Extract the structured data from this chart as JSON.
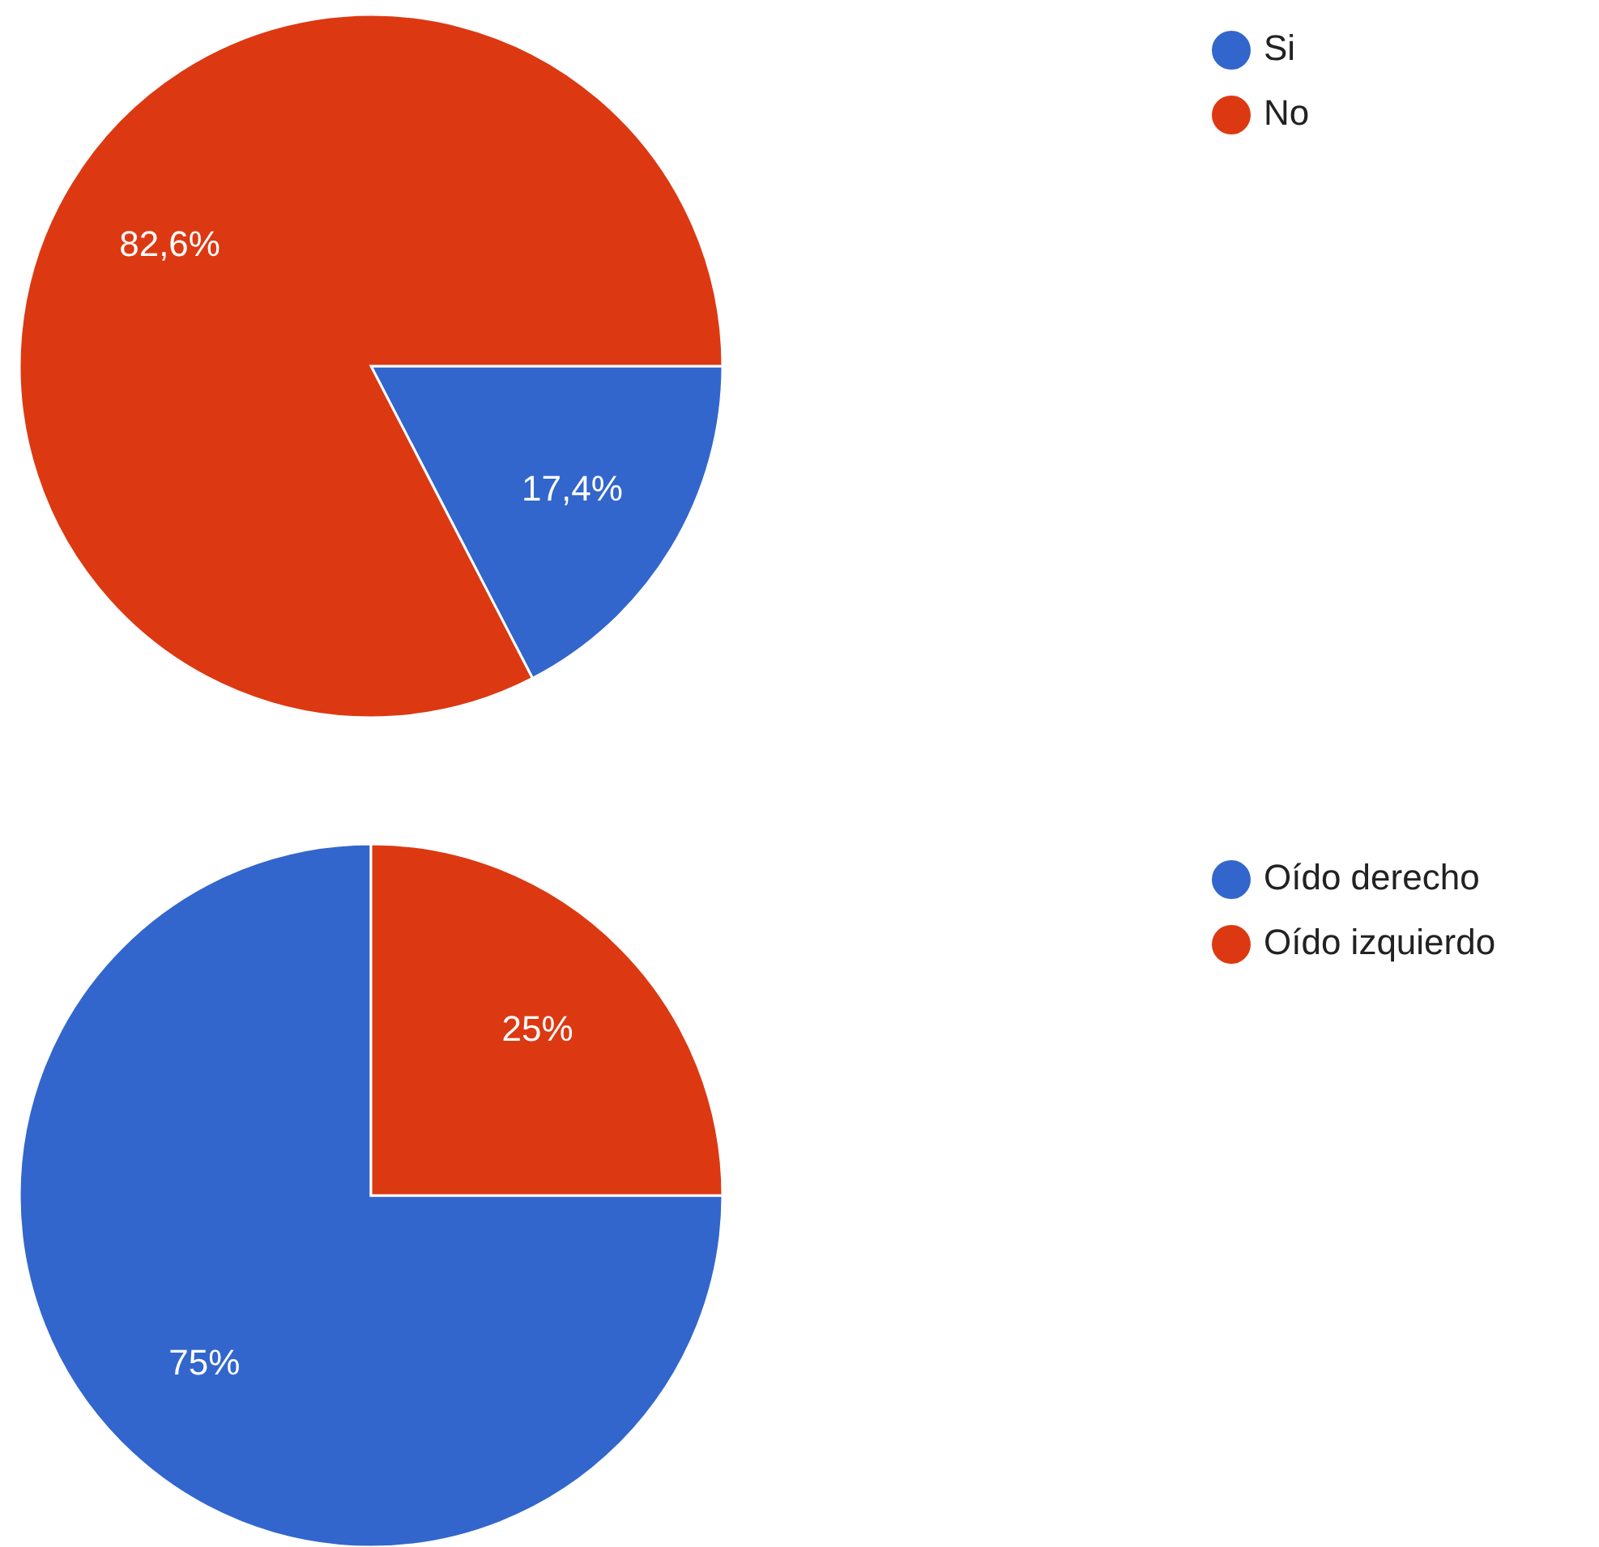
{
  "chart_data": [
    {
      "type": "pie",
      "categories": [
        "Si",
        "No"
      ],
      "values": [
        17.4,
        82.6
      ],
      "colors": [
        "#3366cc",
        "#dc3912"
      ],
      "value_labels": [
        "17,4%",
        "82,6%"
      ],
      "legend": "top right"
    },
    {
      "type": "pie",
      "categories": [
        "Oído derecho",
        "Oído izquierdo"
      ],
      "values": [
        75,
        25
      ],
      "colors": [
        "#3366cc",
        "#dc3912"
      ],
      "value_labels": [
        "75%",
        "25%"
      ],
      "legend": "top right"
    }
  ]
}
